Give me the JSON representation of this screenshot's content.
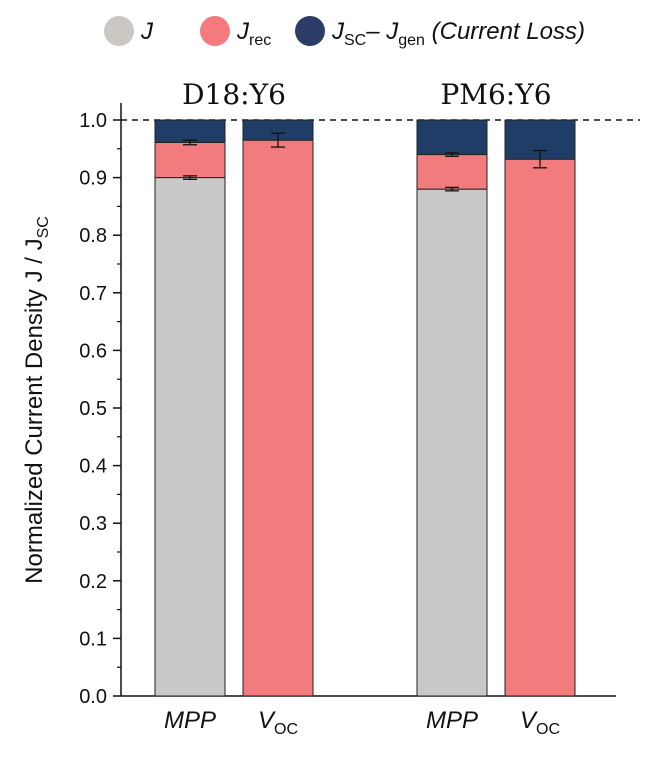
{
  "chart_data": {
    "type": "bar",
    "stacked": true,
    "ylabel": "Normalized Current Density  J / J",
    "ylabel_sub": "SC",
    "ylim": [
      0.0,
      1.0
    ],
    "yticks": [
      "0.0",
      "0.1",
      "0.2",
      "0.3",
      "0.4",
      "0.5",
      "0.6",
      "0.7",
      "0.8",
      "0.9",
      "1.0"
    ],
    "reference_line": 1.0,
    "groups": [
      {
        "title": "D18:Y6",
        "bars": [
          {
            "label": "MPP",
            "label_sub": "",
            "J": 0.9,
            "J_rec": 0.061,
            "J_loss": 0.039,
            "err_J": 0.003,
            "err_rec": 0.004
          },
          {
            "label": "V",
            "label_sub": "OC",
            "J": 0.0,
            "J_rec": 0.965,
            "J_loss": 0.035,
            "err_J": 0,
            "err_rec": 0.012
          }
        ]
      },
      {
        "title": "PM6:Y6",
        "bars": [
          {
            "label": "MPP",
            "label_sub": "",
            "J": 0.88,
            "J_rec": 0.06,
            "J_loss": 0.06,
            "err_J": 0.003,
            "err_rec": 0.003
          },
          {
            "label": "V",
            "label_sub": "OC",
            "J": 0.0,
            "J_rec": 0.932,
            "J_loss": 0.068,
            "err_J": 0,
            "err_rec": 0.015
          }
        ]
      }
    ],
    "legend": [
      {
        "main": "J",
        "sub": "",
        "main2": "",
        "sub2": "",
        "tail": "",
        "color": "#cbc7c2"
      },
      {
        "main": "J",
        "sub": "rec",
        "main2": "",
        "sub2": "",
        "tail": "",
        "color": "#f47a7e"
      },
      {
        "main": "J",
        "sub": "SC",
        "main2": "– J",
        "sub2": "gen",
        "tail": " (Current Loss)",
        "color": "#2b3d66"
      }
    ],
    "colors": {
      "J": "#c9c9c9",
      "J_rec": "#f27b7d",
      "J_loss": "#1f3d66"
    }
  }
}
